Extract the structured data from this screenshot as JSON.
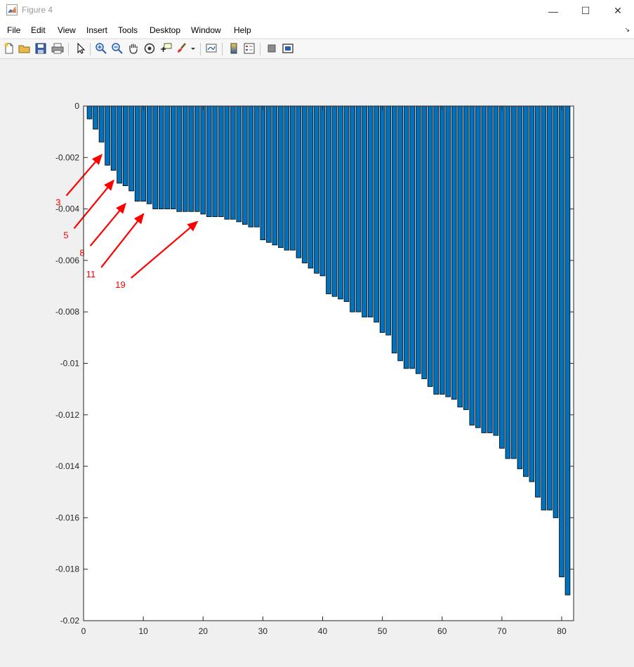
{
  "window": {
    "title": "Figure 4",
    "minimize_glyph": "—",
    "maximize_glyph": "☐",
    "close_glyph": "✕"
  },
  "menu": {
    "items": [
      "File",
      "Edit",
      "View",
      "Insert",
      "Tools",
      "Desktop",
      "Window",
      "Help"
    ],
    "overflow_glyph": "↘"
  },
  "toolbar": {
    "icons": [
      "new-figure-icon",
      "open-file-icon",
      "save-icon",
      "print-icon",
      "pointer-icon",
      "zoom-in-icon",
      "zoom-out-icon",
      "pan-hand-icon",
      "rotate-3d-icon",
      "data-cursor-icon",
      "brush-icon",
      "brush-dropdown-icon",
      "link-plot-icon",
      "colorbar-icon",
      "legend-icon",
      "hide-plot-tools-icon",
      "show-plot-tools-icon"
    ]
  },
  "colors": {
    "bar_fill": "#0072bd",
    "bar_edge": "#000000",
    "annotation": "#ff0000",
    "axes_bg": "#ffffff",
    "figure_bg": "#f0f0f0"
  },
  "chart_data": {
    "type": "bar",
    "title": "",
    "xlabel": "",
    "ylabel": "",
    "xlim": [
      0,
      82
    ],
    "ylim": [
      -0.02,
      0
    ],
    "xticks": [
      0,
      10,
      20,
      30,
      40,
      50,
      60,
      70,
      80
    ],
    "yticks": [
      0,
      -0.002,
      -0.004,
      -0.006,
      -0.008,
      -0.01,
      -0.012,
      -0.014,
      -0.016,
      -0.018,
      -0.02
    ],
    "ytick_labels": [
      "0",
      "-0.002",
      "-0.004",
      "-0.006",
      "-0.008",
      "-0.01",
      "-0.012",
      "-0.014",
      "-0.016",
      "-0.018",
      "-0.02"
    ],
    "grid": false,
    "x": [
      1,
      2,
      3,
      4,
      5,
      6,
      7,
      8,
      9,
      10,
      11,
      12,
      13,
      14,
      15,
      16,
      17,
      18,
      19,
      20,
      21,
      22,
      23,
      24,
      25,
      26,
      27,
      28,
      29,
      30,
      31,
      32,
      33,
      34,
      35,
      36,
      37,
      38,
      39,
      40,
      41,
      42,
      43,
      44,
      45,
      46,
      47,
      48,
      49,
      50,
      51,
      52,
      53,
      54,
      55,
      56,
      57,
      58,
      59,
      60,
      61,
      62,
      63,
      64,
      65,
      66,
      67,
      68,
      69,
      70,
      71,
      72,
      73,
      74,
      75,
      76,
      77,
      78,
      79,
      80,
      81
    ],
    "values": [
      -0.0005,
      -0.0009,
      -0.0014,
      -0.0023,
      -0.0025,
      -0.003,
      -0.0031,
      -0.0033,
      -0.0037,
      -0.0037,
      -0.0038,
      -0.004,
      -0.004,
      -0.004,
      -0.004,
      -0.0041,
      -0.0041,
      -0.0041,
      -0.0041,
      -0.0042,
      -0.0043,
      -0.0043,
      -0.0043,
      -0.0044,
      -0.0044,
      -0.0045,
      -0.0046,
      -0.0047,
      -0.0047,
      -0.0052,
      -0.0053,
      -0.0054,
      -0.0055,
      -0.0056,
      -0.0056,
      -0.0059,
      -0.0061,
      -0.0063,
      -0.0065,
      -0.0066,
      -0.0073,
      -0.0074,
      -0.0075,
      -0.0076,
      -0.008,
      -0.008,
      -0.0082,
      -0.0082,
      -0.0084,
      -0.0088,
      -0.0089,
      -0.0096,
      -0.0099,
      -0.0102,
      -0.0102,
      -0.0104,
      -0.0106,
      -0.0109,
      -0.0112,
      -0.0112,
      -0.0113,
      -0.0114,
      -0.0117,
      -0.0118,
      -0.0124,
      -0.0125,
      -0.0127,
      -0.0127,
      -0.0128,
      -0.0133,
      -0.0137,
      -0.0137,
      -0.0141,
      -0.0144,
      -0.0146,
      -0.0152,
      -0.0157,
      -0.0157,
      -0.016,
      -0.0183,
      -0.019
    ],
    "annotations": [
      {
        "label": "3",
        "x": 3,
        "y": -0.0019
      },
      {
        "label": "5",
        "x": 5,
        "y": -0.0029
      },
      {
        "label": "8",
        "x": 7,
        "y": -0.0038
      },
      {
        "label": "11",
        "x": 10,
        "y": -0.0042
      },
      {
        "label": "19",
        "x": 19,
        "y": -0.0045
      }
    ]
  }
}
